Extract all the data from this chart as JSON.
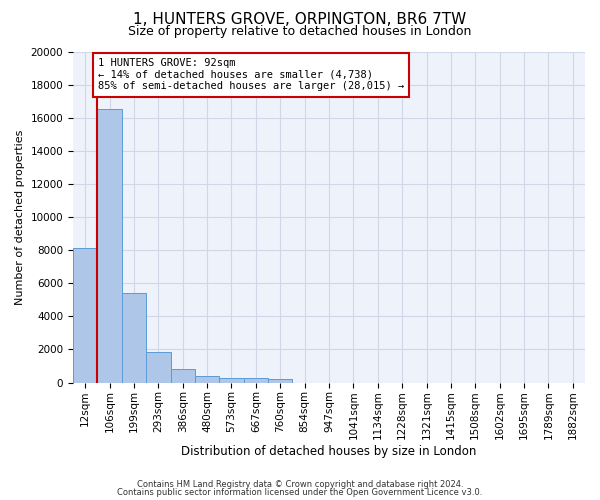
{
  "title": "1, HUNTERS GROVE, ORPINGTON, BR6 7TW",
  "subtitle": "Size of property relative to detached houses in London",
  "xlabel": "Distribution of detached houses by size in London",
  "ylabel": "Number of detached properties",
  "categories": [
    "12sqm",
    "106sqm",
    "199sqm",
    "293sqm",
    "386sqm",
    "480sqm",
    "573sqm",
    "667sqm",
    "760sqm",
    "854sqm",
    "947sqm",
    "1041sqm",
    "1134sqm",
    "1228sqm",
    "1321sqm",
    "1415sqm",
    "1508sqm",
    "1602sqm",
    "1695sqm",
    "1789sqm",
    "1882sqm"
  ],
  "values": [
    8100,
    16500,
    5400,
    1850,
    800,
    380,
    300,
    280,
    220,
    0,
    0,
    0,
    0,
    0,
    0,
    0,
    0,
    0,
    0,
    0,
    0
  ],
  "bar_color": "#aec6e8",
  "bar_edge_color": "#5b9bd5",
  "annotation_text": "1 HUNTERS GROVE: 92sqm\n← 14% of detached houses are smaller (4,738)\n85% of semi-detached houses are larger (28,015) →",
  "annotation_box_color": "#ffffff",
  "annotation_box_edge_color": "#cc0000",
  "property_line_color": "#cc0000",
  "grid_color": "#d0d8e8",
  "background_color": "#eef2fa",
  "ylim": [
    0,
    20000
  ],
  "yticks": [
    0,
    2000,
    4000,
    6000,
    8000,
    10000,
    12000,
    14000,
    16000,
    18000,
    20000
  ],
  "footer_line1": "Contains HM Land Registry data © Crown copyright and database right 2024.",
  "footer_line2": "Contains public sector information licensed under the Open Government Licence v3.0.",
  "title_fontsize": 11,
  "subtitle_fontsize": 9,
  "tick_fontsize": 7.5,
  "ylabel_fontsize": 8,
  "xlabel_fontsize": 8.5,
  "annotation_fontsize": 7.5
}
